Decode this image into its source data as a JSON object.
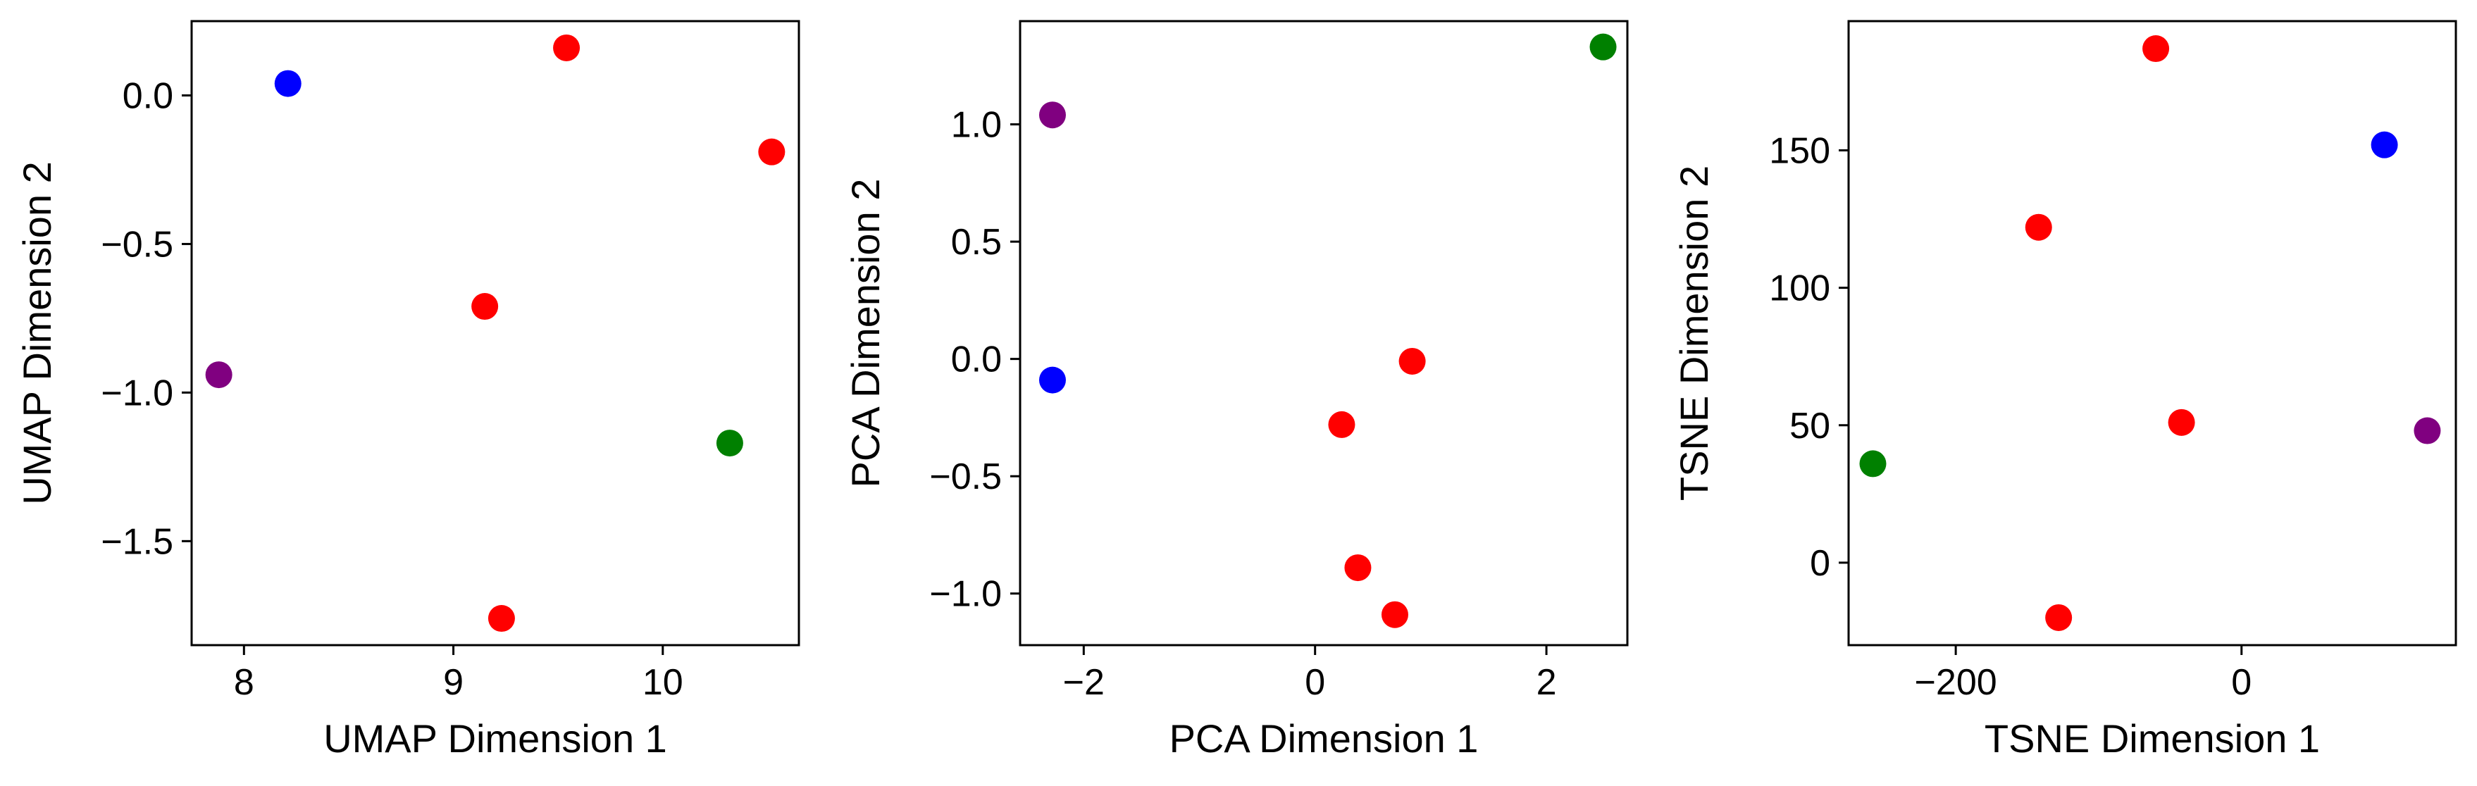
{
  "chart_data": [
    {
      "type": "scatter",
      "xlabel": "UMAP Dimension 1",
      "ylabel": "UMAP Dimension 2",
      "xlim": [
        7.75,
        10.65
      ],
      "ylim": [
        -1.85,
        0.25
      ],
      "xticks": [
        8,
        9,
        10
      ],
      "yticks": [
        0.0,
        -0.5,
        -1.0,
        -1.5
      ],
      "xtick_labels": [
        "8",
        "9",
        "10"
      ],
      "ytick_labels": [
        "0.0",
        "−0.5",
        "−1.0",
        "−1.5"
      ],
      "grid": false,
      "points": [
        {
          "x": 8.21,
          "y": 0.04,
          "color": "#0000ff"
        },
        {
          "x": 9.54,
          "y": 0.16,
          "color": "#ff0000"
        },
        {
          "x": 10.52,
          "y": -0.19,
          "color": "#ff0000"
        },
        {
          "x": 9.15,
          "y": -0.71,
          "color": "#ff0000"
        },
        {
          "x": 7.88,
          "y": -0.94,
          "color": "#800080"
        },
        {
          "x": 10.32,
          "y": -1.17,
          "color": "#008000"
        },
        {
          "x": 9.23,
          "y": -1.76,
          "color": "#ff0000"
        }
      ]
    },
    {
      "type": "scatter",
      "xlabel": "PCA Dimension 1",
      "ylabel": "PCA Dimension 2",
      "xlim": [
        -2.55,
        2.7
      ],
      "ylim": [
        -1.22,
        1.44
      ],
      "xticks": [
        -2,
        0,
        2
      ],
      "yticks": [
        1.0,
        0.5,
        0.0,
        -0.5,
        -1.0
      ],
      "xtick_labels": [
        "−2",
        "0",
        "2"
      ],
      "ytick_labels": [
        "1.0",
        "0.5",
        "0.0",
        "−0.5",
        "−1.0"
      ],
      "grid": false,
      "points": [
        {
          "x": 2.49,
          "y": 1.33,
          "color": "#008000"
        },
        {
          "x": -2.27,
          "y": 1.04,
          "color": "#800080"
        },
        {
          "x": -2.27,
          "y": -0.09,
          "color": "#0000ff"
        },
        {
          "x": 0.84,
          "y": -0.01,
          "color": "#ff0000"
        },
        {
          "x": 0.23,
          "y": -0.28,
          "color": "#ff0000"
        },
        {
          "x": 0.37,
          "y": -0.89,
          "color": "#ff0000"
        },
        {
          "x": 0.69,
          "y": -1.09,
          "color": "#ff0000"
        }
      ]
    },
    {
      "type": "scatter",
      "xlabel": "TSNE Dimension 1",
      "ylabel": "TSNE Dimension 2",
      "xlim": [
        -275,
        150
      ],
      "ylim": [
        -30,
        197
      ],
      "xticks": [
        -200,
        0
      ],
      "yticks": [
        150,
        100,
        50,
        0
      ],
      "xtick_labels": [
        "−200",
        "0"
      ],
      "ytick_labels": [
        "150",
        "100",
        "50",
        "0"
      ],
      "grid": false,
      "points": [
        {
          "x": -60,
          "y": 187,
          "color": "#ff0000"
        },
        {
          "x": 100,
          "y": 152,
          "color": "#0000ff"
        },
        {
          "x": -142,
          "y": 122,
          "color": "#ff0000"
        },
        {
          "x": -42,
          "y": 51,
          "color": "#ff0000"
        },
        {
          "x": 130,
          "y": 48,
          "color": "#800080"
        },
        {
          "x": -258,
          "y": 36,
          "color": "#008000"
        },
        {
          "x": -128,
          "y": -20,
          "color": "#ff0000"
        }
      ]
    }
  ]
}
